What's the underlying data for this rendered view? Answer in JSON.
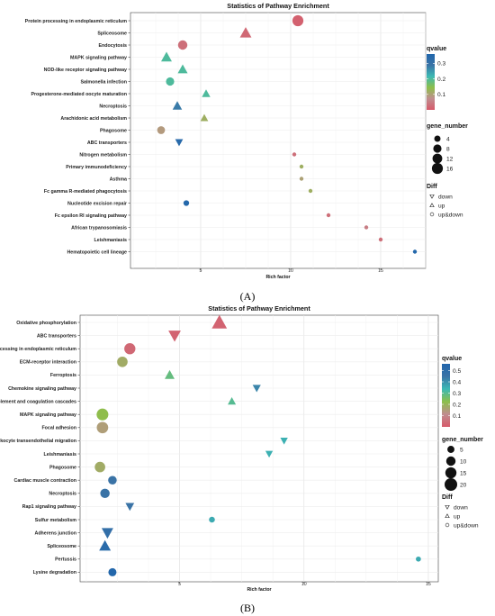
{
  "chart_data": [
    {
      "type": "scatter",
      "title": "Statistics of Pathway Enrichment",
      "xlabel": "Rich factor",
      "ylabel": "",
      "xlim": [
        1.1,
        17.5
      ],
      "xticks": [
        5,
        10,
        15
      ],
      "grid": true,
      "legend_position": "right",
      "categories": [
        "Protein processing in endoplasmic reticulum",
        "Spliceosome",
        "Endocytosis",
        "MAPK signaling pathway",
        "NOD-like receptor signaling pathway",
        "Salmonella infection",
        "Progesterone-mediated oocyte maturation",
        "Necroptosis",
        "Arachidonic acid metabolism",
        "Phagosome",
        "ABC transporters",
        "Nitrogen metabolism",
        "Primary immunodeficiency",
        "Asthma",
        "Fc gamma R-mediated phagocytosis",
        "Nucleotide excision repair",
        "Fc epsilon RI signaling pathway",
        "African trypanosomiasis",
        "Leishmaniasis",
        "Hematopoietic cell lineage"
      ],
      "points": [
        {
          "pathway": "Protein processing in endoplasmic reticulum",
          "rich_factor": 10.4,
          "gene_number": 16,
          "qvalue": 0.01,
          "diff": "up&down"
        },
        {
          "pathway": "Spliceosome",
          "rich_factor": 7.5,
          "gene_number": 13,
          "qvalue": 0.02,
          "diff": "up"
        },
        {
          "pathway": "Endocytosis",
          "rich_factor": 4.0,
          "gene_number": 11,
          "qvalue": 0.03,
          "diff": "up&down"
        },
        {
          "pathway": "MAPK signaling pathway",
          "rich_factor": 3.1,
          "gene_number": 11,
          "qvalue": 0.2,
          "diff": "up"
        },
        {
          "pathway": "NOD-like receptor signaling pathway",
          "rich_factor": 4.0,
          "gene_number": 9,
          "qvalue": 0.2,
          "diff": "up"
        },
        {
          "pathway": "Salmonella infection",
          "rich_factor": 3.3,
          "gene_number": 8,
          "qvalue": 0.2,
          "diff": "up&down"
        },
        {
          "pathway": "Progesterone-mediated oocyte maturation",
          "rich_factor": 5.3,
          "gene_number": 6,
          "qvalue": 0.2,
          "diff": "up"
        },
        {
          "pathway": "Necroptosis",
          "rich_factor": 3.7,
          "gene_number": 8,
          "qvalue": 0.28,
          "diff": "up"
        },
        {
          "pathway": "Arachidonic acid metabolism",
          "rich_factor": 5.2,
          "gene_number": 5,
          "qvalue": 0.12,
          "diff": "up"
        },
        {
          "pathway": "Phagosome",
          "rich_factor": 2.8,
          "gene_number": 7,
          "qvalue": 0.09,
          "diff": "up&down"
        },
        {
          "pathway": "ABC transporters",
          "rich_factor": 3.8,
          "gene_number": 5,
          "qvalue": 0.34,
          "diff": "down"
        },
        {
          "pathway": "Nitrogen metabolism",
          "rich_factor": 10.2,
          "gene_number": 1,
          "qvalue": 0.03,
          "diff": "up&down"
        },
        {
          "pathway": "Primary immunodeficiency",
          "rich_factor": 10.6,
          "gene_number": 1,
          "qvalue": 0.12,
          "diff": "up&down"
        },
        {
          "pathway": "Asthma",
          "rich_factor": 10.6,
          "gene_number": 1,
          "qvalue": 0.1,
          "diff": "up&down"
        },
        {
          "pathway": "Fc gamma R-mediated phagocytosis",
          "rich_factor": 11.1,
          "gene_number": 1,
          "qvalue": 0.12,
          "diff": "up&down"
        },
        {
          "pathway": "Nucleotide excision repair",
          "rich_factor": 4.2,
          "gene_number": 3,
          "qvalue": 0.35,
          "diff": "up&down"
        },
        {
          "pathway": "Fc epsilon RI signaling pathway",
          "rich_factor": 12.1,
          "gene_number": 1,
          "qvalue": 0.03,
          "diff": "up&down"
        },
        {
          "pathway": "African trypanosomiasis",
          "rich_factor": 14.2,
          "gene_number": 1,
          "qvalue": 0.05,
          "diff": "up&down"
        },
        {
          "pathway": "Leishmaniasis",
          "rich_factor": 15.0,
          "gene_number": 1,
          "qvalue": 0.03,
          "diff": "up&down"
        },
        {
          "pathway": "Hematopoietic cell lineage",
          "rich_factor": 16.9,
          "gene_number": 1,
          "qvalue": 0.35,
          "diff": "up&down"
        }
      ],
      "legend_qvalue": {
        "title": "qvalue",
        "ticks": [
          0.3,
          0.2,
          0.1
        ],
        "range": [
          0,
          0.36
        ],
        "colors": [
          "#d65a6a",
          "#c08d8f",
          "#8dbf4a",
          "#3cb9b4",
          "#3a73a6",
          "#2166ac"
        ]
      },
      "legend_gene_number": {
        "title": "gene_number",
        "values": [
          4,
          8,
          12,
          16
        ]
      },
      "legend_diff": {
        "title": "Diff",
        "items": [
          "down",
          "up",
          "up&down"
        ]
      }
    },
    {
      "type": "scatter",
      "title": "Statistics of Pathway Enrichment",
      "xlabel": "Rich factor",
      "ylabel": "",
      "xlim": [
        1.0,
        15.4
      ],
      "xticks": [
        5,
        10,
        15
      ],
      "grid": true,
      "legend_position": "right",
      "categories": [
        "Oxidative phosphorylation",
        "ABC transporters",
        "Protein processing in endoplasmic reticulum",
        "ECM-receptor interaction",
        "Ferroptosis",
        "Chemokine signaling pathway",
        "Complement and coagulation cascades",
        "MAPK signaling pathway",
        "Focal adhesion",
        "Leukocyte transendothelial migration",
        "Leishmaniasis",
        "Phagosome",
        "Cardiac muscle contraction",
        "Necroptosis",
        "Rap1 signaling pathway",
        "Sulfur metabolism",
        "Adherens junction",
        "Spliceosome",
        "Pertussis",
        "Lysine degradation"
      ],
      "points": [
        {
          "pathway": "Oxidative phosphorylation",
          "rich_factor": 6.6,
          "gene_number": 22,
          "qvalue": 0.02,
          "diff": "up"
        },
        {
          "pathway": "ABC transporters",
          "rich_factor": 4.8,
          "gene_number": 14,
          "qvalue": 0.02,
          "diff": "down"
        },
        {
          "pathway": "Protein processing in endoplasmic reticulum",
          "rich_factor": 3.0,
          "gene_number": 15,
          "qvalue": 0.03,
          "diff": "up&down"
        },
        {
          "pathway": "ECM-receptor interaction",
          "rich_factor": 2.7,
          "gene_number": 13,
          "qvalue": 0.18,
          "diff": "up&down"
        },
        {
          "pathway": "Ferroptosis",
          "rich_factor": 4.6,
          "gene_number": 8,
          "qvalue": 0.28,
          "diff": "up"
        },
        {
          "pathway": "Chemokine signaling pathway",
          "rich_factor": 8.1,
          "gene_number": 5,
          "qvalue": 0.42,
          "diff": "down"
        },
        {
          "pathway": "Complement and coagulation cascades",
          "rich_factor": 7.1,
          "gene_number": 5,
          "qvalue": 0.3,
          "diff": "up"
        },
        {
          "pathway": "MAPK signaling pathway",
          "rich_factor": 1.9,
          "gene_number": 17,
          "qvalue": 0.22,
          "diff": "up&down"
        },
        {
          "pathway": "Focal adhesion",
          "rich_factor": 1.9,
          "gene_number": 16,
          "qvalue": 0.15,
          "diff": "up&down"
        },
        {
          "pathway": "Leukocyte transendothelial migration",
          "rich_factor": 9.2,
          "gene_number": 4,
          "qvalue": 0.35,
          "diff": "down"
        },
        {
          "pathway": "Leishmaniasis",
          "rich_factor": 8.6,
          "gene_number": 4,
          "qvalue": 0.35,
          "diff": "down"
        },
        {
          "pathway": "Phagosome",
          "rich_factor": 1.8,
          "gene_number": 13,
          "qvalue": 0.18,
          "diff": "up&down"
        },
        {
          "pathway": "Cardiac muscle contraction",
          "rich_factor": 2.3,
          "gene_number": 8,
          "qvalue": 0.45,
          "diff": "up&down"
        },
        {
          "pathway": "Necroptosis",
          "rich_factor": 2.0,
          "gene_number": 10,
          "qvalue": 0.45,
          "diff": "up&down"
        },
        {
          "pathway": "Rap1 signaling pathway",
          "rich_factor": 3.0,
          "gene_number": 6,
          "qvalue": 0.45,
          "diff": "down"
        },
        {
          "pathway": "Sulfur metabolism",
          "rich_factor": 6.3,
          "gene_number": 3,
          "qvalue": 0.36,
          "diff": "up&down"
        },
        {
          "pathway": "Adherens junction",
          "rich_factor": 2.1,
          "gene_number": 12,
          "qvalue": 0.48,
          "diff": "down"
        },
        {
          "pathway": "Spliceosome",
          "rich_factor": 2.0,
          "gene_number": 12,
          "qvalue": 0.52,
          "diff": "up"
        },
        {
          "pathway": "Pertussis",
          "rich_factor": 14.6,
          "gene_number": 2,
          "qvalue": 0.36,
          "diff": "up&down"
        },
        {
          "pathway": "Lysine degradation",
          "rich_factor": 2.3,
          "gene_number": 7,
          "qvalue": 0.55,
          "diff": "up&down"
        }
      ],
      "legend_qvalue": {
        "title": "qvalue",
        "ticks": [
          0.5,
          0.4,
          0.3,
          0.2,
          0.1
        ],
        "range": [
          0,
          0.56
        ],
        "colors": [
          "#d65a6a",
          "#c08d8f",
          "#8dbf4a",
          "#3cb9b4",
          "#3a73a6",
          "#2166ac"
        ]
      },
      "legend_gene_number": {
        "title": "gene_number",
        "values": [
          5,
          10,
          15,
          20
        ]
      },
      "legend_diff": {
        "title": "Diff",
        "items": [
          "down",
          "up",
          "up&down"
        ]
      }
    }
  ],
  "captions": [
    "(A)",
    "(B)"
  ]
}
